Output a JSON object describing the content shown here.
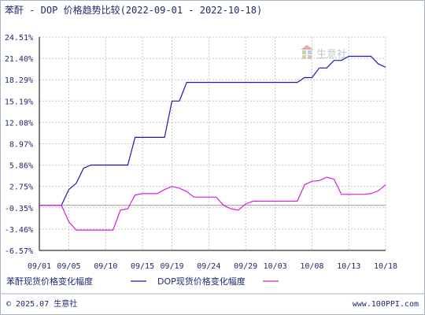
{
  "title": "苯酐 - DOP 价格趋势比较(2022-09-01 - 2022-10-18)",
  "watermark": "生意社",
  "footer": {
    "copyright": "© 2025.07 生意社",
    "url": "www.100PPI.com"
  },
  "colors": {
    "series_1": "#1a1ab0",
    "series_2": "#d81ed8",
    "axis_text": "#1f2a6e",
    "grid": "#c8c8c8",
    "zero_line": "#9a9a9a"
  },
  "chart_data": {
    "type": "line",
    "title": "苯酐 - DOP 价格趋势比较(2022-09-01 - 2022-10-18)",
    "x_start": "2022-09-01",
    "x_end": "2022-10-18",
    "xtick_labels": [
      "09/01",
      "09/05",
      "09/10",
      "09/15",
      "09/19",
      "09/24",
      "09/29",
      "10/03",
      "10/08",
      "10/13",
      "10/18"
    ],
    "yticks": [
      24.51,
      21.4,
      18.29,
      15.19,
      12.08,
      8.97,
      5.86,
      2.75,
      -0.35,
      -3.46,
      -6.57
    ],
    "ytick_labels": [
      "24.51%",
      "21.40%",
      "18.29%",
      "15.19%",
      "12.08%",
      "8.97%",
      "5.86%",
      "2.75%",
      "-0.35%",
      "-3.46%",
      "-6.57%"
    ],
    "ylim": [
      -6.57,
      24.51
    ],
    "grid": true,
    "legend_position": "bottom",
    "series": [
      {
        "name": "苯酐现货价格变化幅度",
        "color": "#1a1ab0",
        "points": [
          [
            "2022-09-01",
            0.0
          ],
          [
            "2022-09-02",
            0.0
          ],
          [
            "2022-09-03",
            0.0
          ],
          [
            "2022-09-04",
            0.0
          ],
          [
            "2022-09-05",
            2.3
          ],
          [
            "2022-09-06",
            3.2
          ],
          [
            "2022-09-07",
            5.4
          ],
          [
            "2022-09-08",
            5.86
          ],
          [
            "2022-09-09",
            5.86
          ],
          [
            "2022-09-10",
            5.86
          ],
          [
            "2022-09-11",
            5.86
          ],
          [
            "2022-09-12",
            5.86
          ],
          [
            "2022-09-13",
            5.86
          ],
          [
            "2022-09-14",
            9.9
          ],
          [
            "2022-09-15",
            9.9
          ],
          [
            "2022-09-16",
            9.9
          ],
          [
            "2022-09-17",
            9.9
          ],
          [
            "2022-09-18",
            9.9
          ],
          [
            "2022-09-19",
            15.19
          ],
          [
            "2022-09-20",
            15.19
          ],
          [
            "2022-09-21",
            17.9
          ],
          [
            "2022-09-22",
            17.9
          ],
          [
            "2022-09-23",
            17.9
          ],
          [
            "2022-09-24",
            17.9
          ],
          [
            "2022-09-25",
            17.9
          ],
          [
            "2022-09-26",
            17.9
          ],
          [
            "2022-09-27",
            17.9
          ],
          [
            "2022-09-28",
            17.9
          ],
          [
            "2022-09-29",
            17.9
          ],
          [
            "2022-09-30",
            17.9
          ],
          [
            "2022-10-01",
            17.9
          ],
          [
            "2022-10-02",
            17.9
          ],
          [
            "2022-10-03",
            17.9
          ],
          [
            "2022-10-04",
            17.9
          ],
          [
            "2022-10-05",
            17.9
          ],
          [
            "2022-10-06",
            17.9
          ],
          [
            "2022-10-07",
            18.6
          ],
          [
            "2022-10-08",
            18.6
          ],
          [
            "2022-10-09",
            20.0
          ],
          [
            "2022-10-10",
            20.0
          ],
          [
            "2022-10-11",
            21.1
          ],
          [
            "2022-10-12",
            21.1
          ],
          [
            "2022-10-13",
            21.7
          ],
          [
            "2022-10-14",
            21.7
          ],
          [
            "2022-10-15",
            21.7
          ],
          [
            "2022-10-16",
            21.7
          ],
          [
            "2022-10-17",
            20.6
          ],
          [
            "2022-10-18",
            20.1
          ]
        ]
      },
      {
        "name": "DOP现货价格变化幅度",
        "color": "#d81ed8",
        "points": [
          [
            "2022-09-01",
            0.0
          ],
          [
            "2022-09-02",
            0.0
          ],
          [
            "2022-09-03",
            0.0
          ],
          [
            "2022-09-04",
            0.0
          ],
          [
            "2022-09-05",
            -2.4
          ],
          [
            "2022-09-06",
            -3.6
          ],
          [
            "2022-09-07",
            -3.6
          ],
          [
            "2022-09-08",
            -3.6
          ],
          [
            "2022-09-09",
            -3.6
          ],
          [
            "2022-09-10",
            -3.6
          ],
          [
            "2022-09-11",
            -3.6
          ],
          [
            "2022-09-12",
            -0.7
          ],
          [
            "2022-09-13",
            -0.5
          ],
          [
            "2022-09-14",
            1.5
          ],
          [
            "2022-09-15",
            1.7
          ],
          [
            "2022-09-16",
            1.7
          ],
          [
            "2022-09-17",
            1.7
          ],
          [
            "2022-09-18",
            2.3
          ],
          [
            "2022-09-19",
            2.75
          ],
          [
            "2022-09-20",
            2.5
          ],
          [
            "2022-09-21",
            2.0
          ],
          [
            "2022-09-22",
            1.2
          ],
          [
            "2022-09-23",
            1.2
          ],
          [
            "2022-09-24",
            1.2
          ],
          [
            "2022-09-25",
            1.2
          ],
          [
            "2022-09-26",
            0.0
          ],
          [
            "2022-09-27",
            -0.5
          ],
          [
            "2022-09-28",
            -0.7
          ],
          [
            "2022-09-29",
            0.2
          ],
          [
            "2022-09-30",
            0.6
          ],
          [
            "2022-10-01",
            0.6
          ],
          [
            "2022-10-02",
            0.6
          ],
          [
            "2022-10-03",
            0.6
          ],
          [
            "2022-10-04",
            0.6
          ],
          [
            "2022-10-05",
            0.6
          ],
          [
            "2022-10-06",
            0.6
          ],
          [
            "2022-10-07",
            3.0
          ],
          [
            "2022-10-08",
            3.5
          ],
          [
            "2022-10-09",
            3.6
          ],
          [
            "2022-10-10",
            4.1
          ],
          [
            "2022-10-11",
            3.8
          ],
          [
            "2022-10-12",
            1.6
          ],
          [
            "2022-10-13",
            1.6
          ],
          [
            "2022-10-14",
            1.6
          ],
          [
            "2022-10-15",
            1.6
          ],
          [
            "2022-10-16",
            1.7
          ],
          [
            "2022-10-17",
            2.1
          ],
          [
            "2022-10-18",
            3.0
          ]
        ]
      }
    ]
  }
}
